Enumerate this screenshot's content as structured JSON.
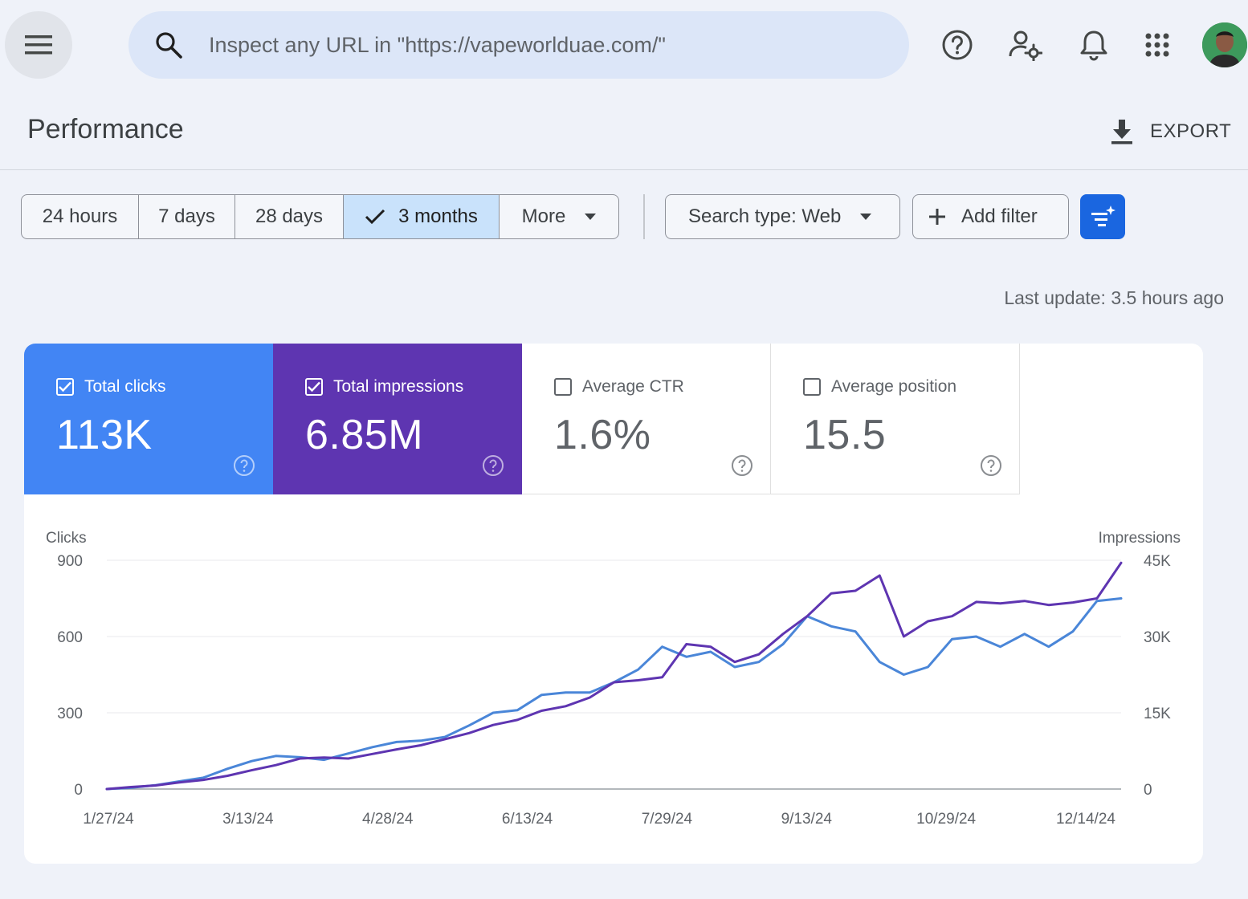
{
  "search": {
    "placeholder": "Inspect any URL in \"https://vapeworlduae.com/\""
  },
  "header": {
    "title": "Performance",
    "export_label": "EXPORT"
  },
  "date_ranges": [
    {
      "label": "24 hours",
      "active": false
    },
    {
      "label": "7 days",
      "active": false
    },
    {
      "label": "28 days",
      "active": false
    },
    {
      "label": "3 months",
      "active": true
    },
    {
      "label": "More",
      "active": false
    }
  ],
  "filters": {
    "search_type_label": "Search type: Web",
    "add_filter_label": "Add filter"
  },
  "last_update": "Last update: 3.5 hours ago",
  "metrics": {
    "clicks": {
      "label": "Total clicks",
      "value": "113K",
      "checked": true,
      "color": "#4285f4"
    },
    "impressions": {
      "label": "Total impressions",
      "value": "6.85M",
      "checked": true,
      "color": "#5e35b1"
    },
    "ctr": {
      "label": "Average CTR",
      "value": "1.6%",
      "checked": false
    },
    "position": {
      "label": "Average position",
      "value": "15.5",
      "checked": false
    }
  },
  "chart_data": {
    "type": "line",
    "x": [
      "1/27/24",
      "2/4/24",
      "2/12/24",
      "2/20/24",
      "2/28/24",
      "3/7/24",
      "3/15/24",
      "3/23/24",
      "3/31/24",
      "4/8/24",
      "4/16/24",
      "4/24/24",
      "5/2/24",
      "5/10/24",
      "5/18/24",
      "5/26/24",
      "6/3/24",
      "6/11/24",
      "6/19/24",
      "6/27/24",
      "7/5/24",
      "7/13/24",
      "7/21/24",
      "7/29/24",
      "8/6/24",
      "8/14/24",
      "8/22/24",
      "8/30/24",
      "9/7/24",
      "9/15/24",
      "9/23/24",
      "10/1/24",
      "10/9/24",
      "10/17/24",
      "10/25/24",
      "11/2/24",
      "11/10/24",
      "11/18/24",
      "11/26/24",
      "12/4/24",
      "12/12/24",
      "12/20/24",
      "12/24/24"
    ],
    "x_tick_labels": [
      "1/27/24",
      "3/13/24",
      "4/28/24",
      "6/13/24",
      "7/29/24",
      "9/13/24",
      "10/29/24",
      "12/14/24"
    ],
    "series": [
      {
        "name": "Clicks",
        "axis": "left",
        "color": "#4a86d8",
        "values": [
          0,
          5,
          15,
          30,
          45,
          80,
          110,
          130,
          125,
          115,
          140,
          165,
          185,
          190,
          205,
          250,
          300,
          310,
          370,
          380,
          380,
          420,
          470,
          560,
          520,
          540,
          480,
          500,
          570,
          680,
          640,
          620,
          500,
          450,
          480,
          590,
          600,
          560,
          610,
          560,
          620,
          740,
          750
        ]
      },
      {
        "name": "Impressions",
        "axis": "right",
        "color": "#5e35b1",
        "values": [
          0,
          400,
          700,
          1300,
          1800,
          2600,
          3700,
          4700,
          6000,
          6200,
          6000,
          6900,
          7800,
          8600,
          9800,
          11000,
          12600,
          13600,
          15400,
          16300,
          18000,
          21000,
          21400,
          22000,
          28500,
          28000,
          25000,
          26500,
          30500,
          34000,
          38500,
          39000,
          42000,
          30000,
          33000,
          34000,
          36800,
          36500,
          37000,
          36200,
          36700,
          37500,
          44500
        ]
      }
    ],
    "y_left": {
      "label": "Clicks",
      "ticks": [
        "0",
        "300",
        "600",
        "900"
      ],
      "min": 0,
      "max": 900
    },
    "y_right": {
      "label": "Impressions",
      "ticks": [
        "0",
        "15K",
        "30K",
        "45K"
      ],
      "min": 0,
      "max": 45000
    },
    "grid": true
  }
}
